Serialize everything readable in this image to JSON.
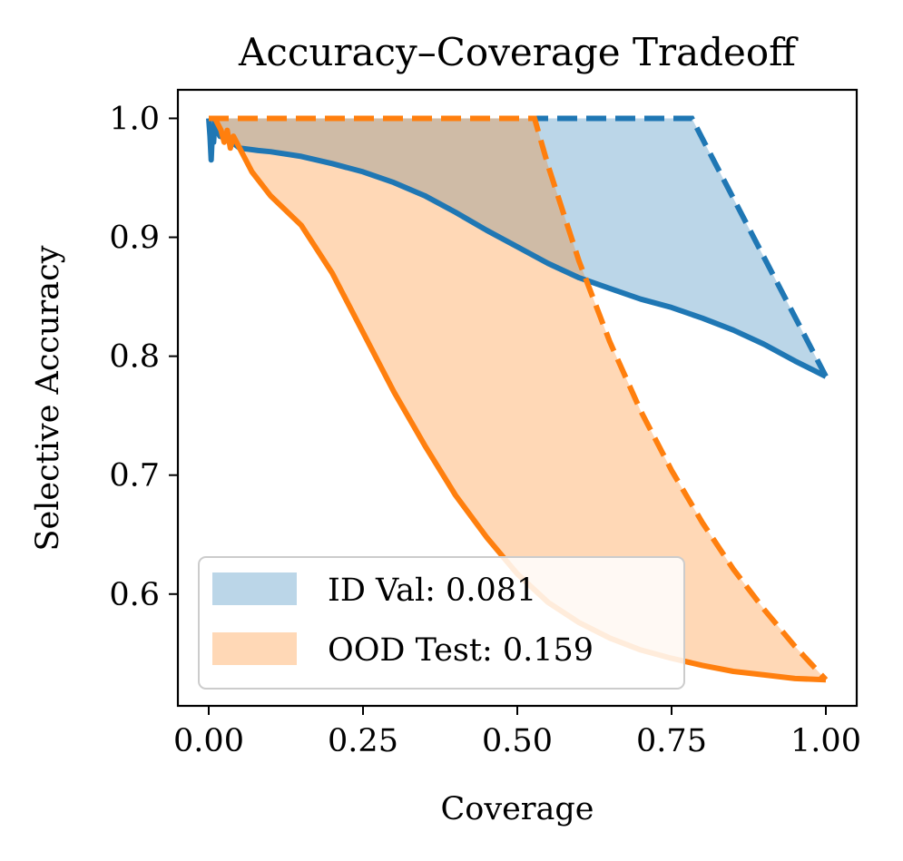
{
  "chart_data": {
    "type": "line",
    "title": "Accuracy–Coverage Tradeoff",
    "xlabel": "Coverage",
    "ylabel": "Selective Accuracy",
    "xlim": [
      -0.05,
      1.05
    ],
    "ylim": [
      0.506,
      1.024
    ],
    "xticks": [
      0.0,
      0.25,
      0.5,
      0.75,
      1.0
    ],
    "xtick_labels": [
      "0.00",
      "0.25",
      "0.50",
      "0.75",
      "1.00"
    ],
    "yticks": [
      0.6,
      0.7,
      0.8,
      0.9,
      1.0
    ],
    "ytick_labels": [
      "0.6",
      "0.7",
      "0.8",
      "0.9",
      "1.0"
    ],
    "grid": false,
    "legend_position": "bottom-left",
    "series": [
      {
        "name": "ID Val",
        "legend_label": "ID Val: 0.081",
        "area": 0.081,
        "color": "#1f77b4",
        "fill_color": "#1f77b4",
        "actual": {
          "x": [
            0.0,
            0.002,
            0.004,
            0.006,
            0.008,
            0.01,
            0.014,
            0.018,
            0.03,
            0.05,
            0.08,
            0.1,
            0.15,
            0.2,
            0.25,
            0.3,
            0.35,
            0.4,
            0.45,
            0.5,
            0.55,
            0.6,
            0.65,
            0.7,
            0.75,
            0.8,
            0.85,
            0.9,
            0.95,
            1.0
          ],
          "y": [
            1.0,
            0.985,
            0.965,
            0.99,
            0.98,
            1.0,
            0.99,
            0.985,
            0.983,
            0.975,
            0.973,
            0.972,
            0.968,
            0.962,
            0.955,
            0.946,
            0.935,
            0.921,
            0.906,
            0.892,
            0.878,
            0.866,
            0.857,
            0.848,
            0.841,
            0.832,
            0.822,
            0.81,
            0.796,
            0.783
          ]
        },
        "oracle": {
          "x": [
            0.0,
            0.783,
            1.0
          ],
          "y": [
            1.0,
            1.0,
            0.783
          ]
        }
      },
      {
        "name": "OOD Test",
        "legend_label": "OOD Test: 0.159",
        "area": 0.159,
        "color": "#ff7f0e",
        "fill_color": "#ff7f0e",
        "actual": {
          "x": [
            0.0,
            0.01,
            0.02,
            0.025,
            0.03,
            0.035,
            0.04,
            0.05,
            0.07,
            0.1,
            0.15,
            0.2,
            0.25,
            0.3,
            0.35,
            0.4,
            0.45,
            0.5,
            0.55,
            0.6,
            0.65,
            0.7,
            0.75,
            0.8,
            0.85,
            0.9,
            0.95,
            1.0
          ],
          "y": [
            1.0,
            1.0,
            0.99,
            0.98,
            0.99,
            0.975,
            0.985,
            0.975,
            0.955,
            0.935,
            0.91,
            0.87,
            0.82,
            0.77,
            0.725,
            0.683,
            0.648,
            0.617,
            0.593,
            0.576,
            0.563,
            0.553,
            0.546,
            0.54,
            0.535,
            0.532,
            0.529,
            0.528
          ]
        },
        "oracle": {
          "x": [
            0.0,
            0.528,
            0.55,
            0.6,
            0.65,
            0.7,
            0.75,
            0.8,
            0.85,
            0.9,
            0.95,
            1.0
          ],
          "y": [
            1.0,
            1.0,
            0.96,
            0.88,
            0.812,
            0.754,
            0.704,
            0.66,
            0.621,
            0.587,
            0.556,
            0.528
          ]
        }
      }
    ]
  }
}
